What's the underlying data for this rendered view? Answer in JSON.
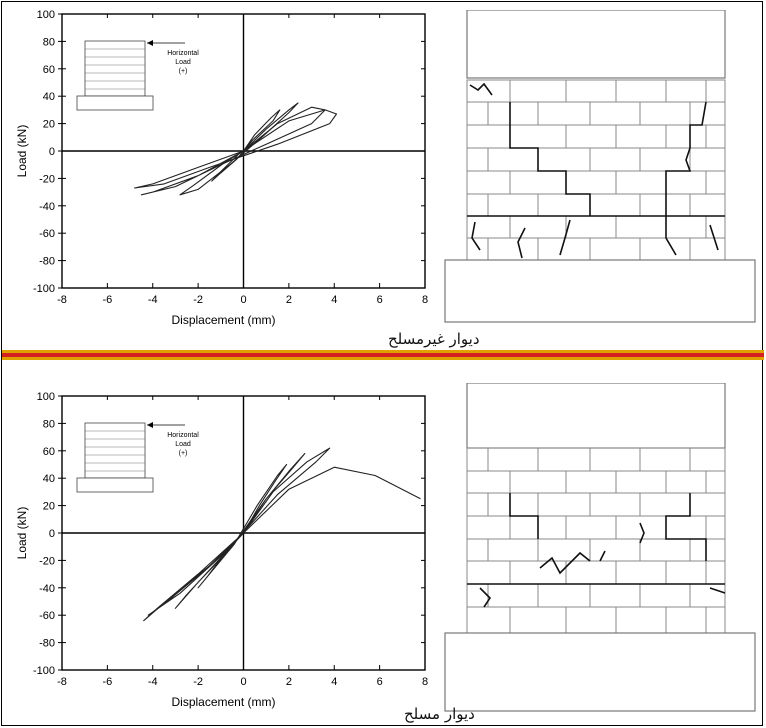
{
  "figure_accent": {
    "separator_top": "#e0a000",
    "separator_mid": "#d42020",
    "separator_bottom": "#e0a000"
  },
  "panels": [
    {
      "caption": "دیوار غیرمسلح",
      "inset": {
        "line1": "Horizontal",
        "line2": "Load",
        "line3": "(+)"
      }
    },
    {
      "caption": "دیوار مسلح",
      "inset": {
        "line1": "Horizontal",
        "line2": "Load",
        "line3": "(+)"
      }
    }
  ],
  "chart_data": [
    {
      "type": "line",
      "title": "",
      "xlabel": "Displacement (mm)",
      "ylabel": "Load (kN)",
      "xlim": [
        -8,
        8
      ],
      "ylim": [
        -100,
        100
      ],
      "x_ticks": [
        -8,
        -6,
        -4,
        -2,
        0,
        2,
        4,
        6,
        8
      ],
      "y_ticks": [
        -100,
        -80,
        -60,
        -40,
        -20,
        0,
        20,
        40,
        60,
        80,
        100
      ],
      "series": [
        {
          "values": [
            [
              0,
              0
            ],
            [
              0.5,
              12
            ],
            [
              1.2,
              24
            ],
            [
              1.6,
              30
            ],
            [
              1.3,
              22
            ],
            [
              0.4,
              8
            ],
            [
              -0.3,
              -6
            ],
            [
              -1,
              -16
            ],
            [
              -1.4,
              -22
            ],
            [
              -1,
              -15
            ],
            [
              -0.2,
              -2
            ],
            [
              0,
              0
            ]
          ]
        },
        {
          "values": [
            [
              0,
              0
            ],
            [
              1,
              16
            ],
            [
              2,
              30
            ],
            [
              2.4,
              35
            ],
            [
              2,
              28
            ],
            [
              0.8,
              10
            ],
            [
              -0.6,
              -10
            ],
            [
              -2,
              -28
            ],
            [
              -2.8,
              -32
            ],
            [
              -2.2,
              -25
            ],
            [
              -0.8,
              -8
            ],
            [
              0,
              0
            ]
          ]
        },
        {
          "values": [
            [
              0,
              0
            ],
            [
              1.5,
              20
            ],
            [
              3,
              32
            ],
            [
              3.6,
              30
            ],
            [
              3,
              20
            ],
            [
              1,
              5
            ],
            [
              -1,
              -10
            ],
            [
              -3,
              -26
            ],
            [
              -4.5,
              -32
            ],
            [
              -4,
              -30
            ],
            [
              -2,
              -18
            ],
            [
              0,
              0
            ]
          ]
        },
        {
          "values": [
            [
              0,
              0
            ],
            [
              2,
              22
            ],
            [
              3.6,
              30
            ],
            [
              4.1,
              27
            ],
            [
              3.8,
              20
            ],
            [
              1.5,
              5
            ],
            [
              -1.5,
              -12
            ],
            [
              -3.5,
              -24
            ],
            [
              -4.8,
              -27
            ],
            [
              -4,
              -24
            ],
            [
              -2,
              -12
            ],
            [
              0,
              0
            ]
          ]
        }
      ]
    },
    {
      "type": "line",
      "title": "",
      "xlabel": "Displacement (mm)",
      "ylabel": "Load (kN)",
      "xlim": [
        -8,
        8
      ],
      "ylim": [
        -100,
        100
      ],
      "x_ticks": [
        -8,
        -6,
        -4,
        -2,
        0,
        2,
        4,
        6,
        8
      ],
      "y_ticks": [
        -100,
        -80,
        -60,
        -40,
        -20,
        0,
        20,
        40,
        60,
        80,
        100
      ],
      "series": [
        {
          "values": [
            [
              0,
              0
            ],
            [
              0.7,
              20
            ],
            [
              1.4,
              38
            ],
            [
              1.9,
              50
            ],
            [
              1.5,
              42
            ],
            [
              0.6,
              20
            ],
            [
              -0.4,
              -8
            ],
            [
              -1.4,
              -28
            ],
            [
              -2,
              -40
            ],
            [
              -1.6,
              -32
            ],
            [
              -0.6,
              -10
            ],
            [
              0,
              0
            ]
          ]
        },
        {
          "values": [
            [
              0,
              0
            ],
            [
              1,
              25
            ],
            [
              2,
              45
            ],
            [
              2.7,
              58
            ],
            [
              2.2,
              48
            ],
            [
              1,
              25
            ],
            [
              -0.5,
              -10
            ],
            [
              -2,
              -36
            ],
            [
              -3,
              -55
            ],
            [
              -2.5,
              -45
            ],
            [
              -1,
              -18
            ],
            [
              0,
              0
            ]
          ]
        },
        {
          "values": [
            [
              0,
              0
            ],
            [
              1.3,
              30
            ],
            [
              2.8,
              52
            ],
            [
              3.8,
              62
            ],
            [
              3.2,
              52
            ],
            [
              1.5,
              28
            ],
            [
              -0.8,
              -14
            ],
            [
              -2.8,
              -44
            ],
            [
              -4.2,
              -60
            ],
            [
              -3.5,
              -52
            ],
            [
              -1.5,
              -24
            ],
            [
              0,
              0
            ]
          ]
        },
        {
          "values": [
            [
              0,
              0
            ],
            [
              2,
              32
            ],
            [
              4,
              48
            ],
            [
              5.8,
              42
            ],
            [
              7.8,
              25
            ]
          ]
        },
        {
          "values": [
            [
              0,
              0
            ],
            [
              -1.5,
              -24
            ],
            [
              -3,
              -44
            ],
            [
              -4.4,
              -64
            ],
            [
              -3.8,
              -55
            ],
            [
              -2,
              -30
            ],
            [
              0,
              0
            ]
          ]
        }
      ]
    }
  ]
}
